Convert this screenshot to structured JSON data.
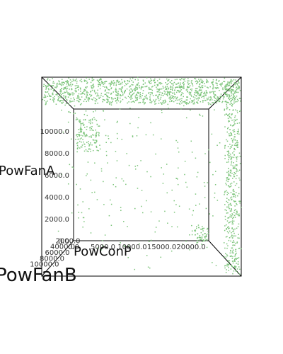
{
  "chart_data": {
    "type": "scatter",
    "dimensions": 3,
    "marker_color": "#7cc47a",
    "axes": {
      "x": {
        "label": "PowConP",
        "range": [
          0,
          23000
        ],
        "ticks": [
          {
            "value": 0,
            "label": "0.0"
          },
          {
            "value": 5000,
            "label": "5000.0"
          },
          {
            "value": 10000,
            "label": "10000.0"
          },
          {
            "value": 15000,
            "label": "15000.0"
          },
          {
            "value": 20000,
            "label": "20000.0"
          }
        ]
      },
      "y": {
        "label": "PowFanA",
        "range": [
          0,
          12000
        ],
        "ticks": [
          {
            "value": 0,
            "label": "0.0"
          },
          {
            "value": 2000,
            "label": "2000.0"
          },
          {
            "value": 4000,
            "label": "4000.0"
          },
          {
            "value": 6000,
            "label": "6000.0"
          },
          {
            "value": 8000,
            "label": "8000.0"
          },
          {
            "value": 10000,
            "label": "10000.0"
          }
        ]
      },
      "z": {
        "label": "PowFanB",
        "range": [
          0,
          12000
        ],
        "ticks": [
          {
            "value": 2000,
            "label": "2000.0"
          },
          {
            "value": 4000,
            "label": "4000.0"
          },
          {
            "value": 6000,
            "label": "6000.0"
          },
          {
            "value": 8000,
            "label": "8000.0"
          },
          {
            "value": 10000,
            "label": "10000.0"
          }
        ]
      }
    },
    "clusters": [
      {
        "x_range": [
          0,
          23000
        ],
        "y_range": [
          10500,
          12000
        ],
        "z_range": [
          10500,
          12000
        ],
        "count": 1200
      },
      {
        "x_range": [
          21500,
          23000
        ],
        "y_range": [
          0,
          12000
        ],
        "z_range": [
          10000,
          12000
        ],
        "count": 500
      },
      {
        "x_range": [
          1000,
          4500
        ],
        "y_range": [
          8000,
          11000
        ],
        "z_range": [
          0,
          2000
        ],
        "count": 150
      },
      {
        "x_range": [
          20500,
          22500
        ],
        "y_range": [
          0,
          1500
        ],
        "z_range": [
          0,
          1500
        ],
        "count": 60
      },
      {
        "x_range": [
          0,
          23000
        ],
        "y_range": [
          0,
          12000
        ],
        "z_range": [
          0,
          12000
        ],
        "count": 250
      }
    ]
  }
}
